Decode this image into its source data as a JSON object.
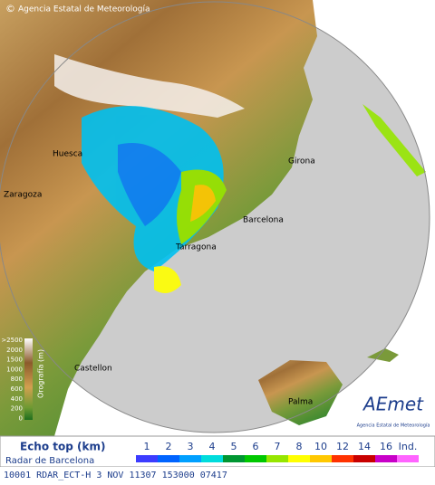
{
  "header": {
    "copyright": "©",
    "agency": "Agencia Estatal de Meteorología"
  },
  "cities": [
    "Huesca",
    "Zaragoza",
    "Girona",
    "Barcelona",
    "Tarragona",
    "Castellon",
    "Palma"
  ],
  "orography": {
    "title": "Orografía (m)",
    "labels": [
      ">2500",
      "2000",
      "1500",
      "1000",
      "800",
      "600",
      "400",
      "200",
      "0"
    ]
  },
  "logo": {
    "name": "AEmet",
    "subtitle": "Agencia Estatal de Meteorología"
  },
  "legend": {
    "title": "Echo top (km)",
    "subtitle": "Radar de Barcelona",
    "items": [
      {
        "label": "1",
        "color": "#3c3cff"
      },
      {
        "label": "2",
        "color": "#0064ff"
      },
      {
        "label": "3",
        "color": "#00a0ff"
      },
      {
        "label": "4",
        "color": "#00dcdc"
      },
      {
        "label": "5",
        "color": "#009632"
      },
      {
        "label": "6",
        "color": "#00c800"
      },
      {
        "label": "7",
        "color": "#96e600"
      },
      {
        "label": "8",
        "color": "#ffff00"
      },
      {
        "label": "10",
        "color": "#ffc800"
      },
      {
        "label": "12",
        "color": "#ff3200"
      },
      {
        "label": "14",
        "color": "#c80000"
      },
      {
        "label": "16",
        "color": "#c800c8"
      },
      {
        "label": "Ind.",
        "color": "#ff64ff"
      }
    ]
  },
  "status": "10001  RDAR_ECT-H    3 NOV 11307 153000 07417"
}
